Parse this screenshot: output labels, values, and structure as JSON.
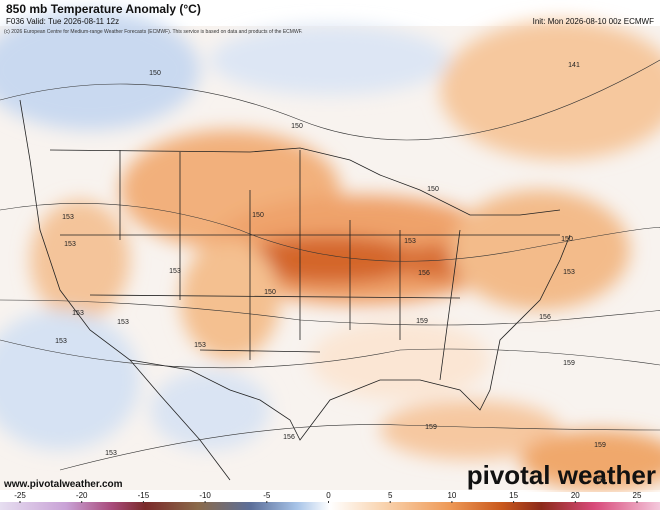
{
  "header": {
    "title": "850 mb Temperature Anomaly (°C)",
    "valid": "F036 Valid: Tue 2026-08-11 12z",
    "init": "Init: Mon 2026-08-10 00z ECMWF",
    "credit": "(c) 2026 European Centre for Medium-range Weather Forecasts (ECMWF). This service is based on data and products of the ECMWF."
  },
  "footer": {
    "website": "www.pivotalweather.com",
    "brand": "pivotal weather"
  },
  "colorbar": {
    "ticks": [
      -25,
      -20,
      -15,
      -10,
      -5,
      0,
      5,
      10,
      15,
      20,
      25
    ]
  },
  "contour_labels": [
    150,
    150,
    141,
    153,
    150,
    150,
    153,
    153,
    150,
    156,
    153,
    150,
    153,
    153,
    153,
    156,
    159,
    159,
    153,
    153,
    156,
    153,
    159,
    159,
    156
  ]
}
